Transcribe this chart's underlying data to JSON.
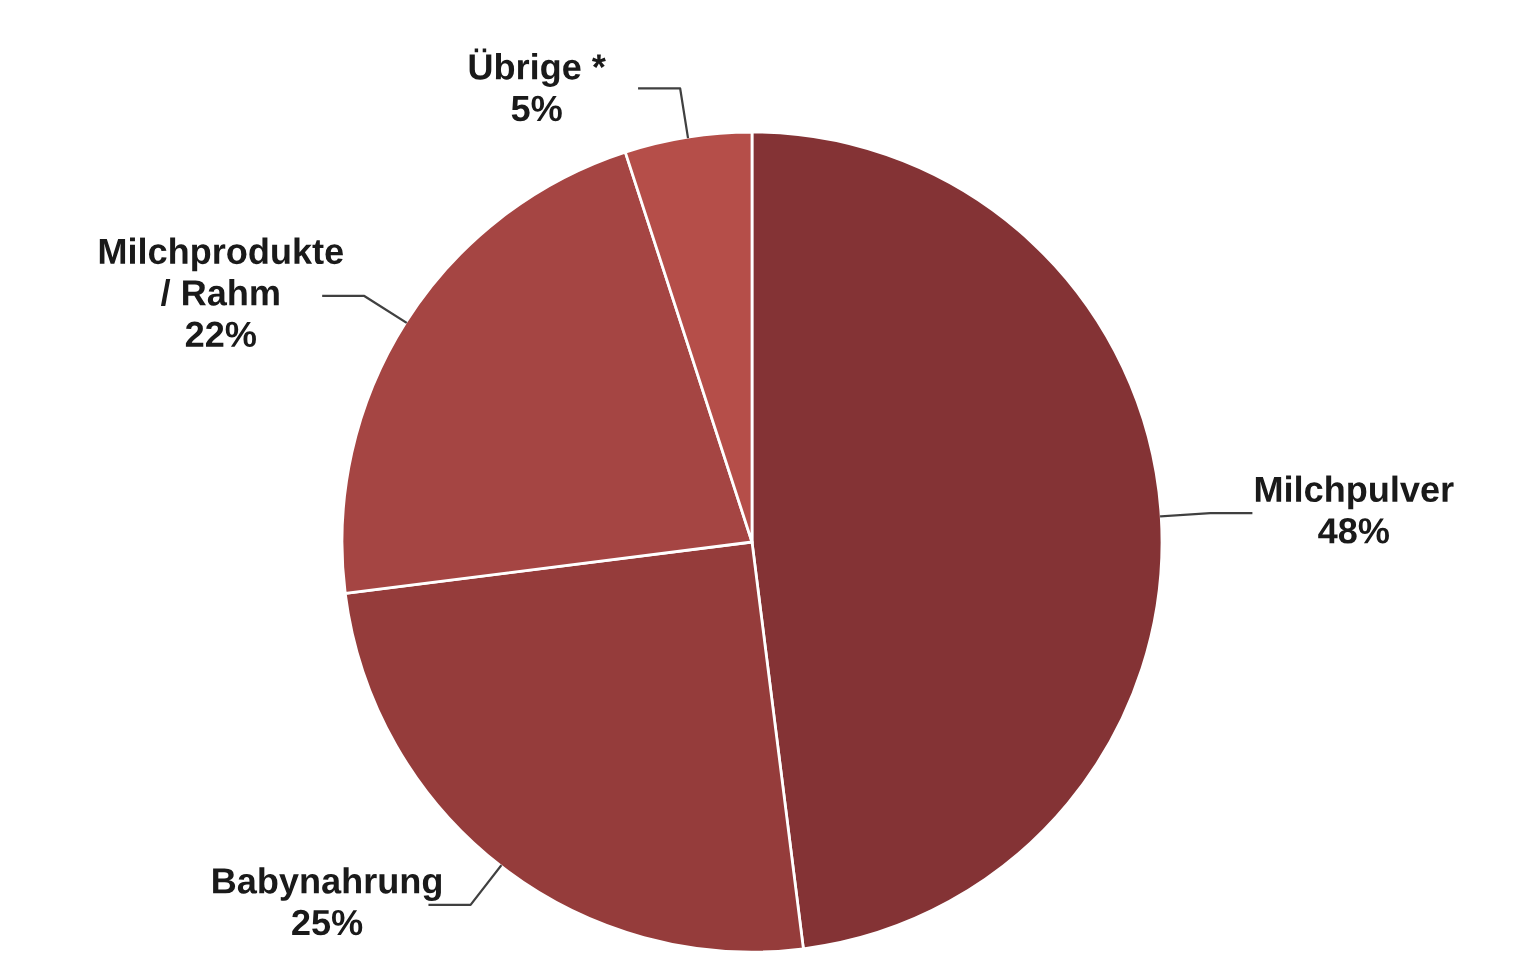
{
  "chart_data": {
    "type": "pie",
    "categories": [
      "Milchpulver",
      "Babynahrung",
      "Milchprodukte\n/ Rahm",
      "Übrige *"
    ],
    "values": [
      48,
      25,
      22,
      5
    ],
    "value_labels": [
      "48%",
      "25%",
      "22%",
      "5%"
    ],
    "colors": [
      "#843335",
      "#953c3b",
      "#a54543",
      "#b54e49"
    ],
    "legend": false
  }
}
